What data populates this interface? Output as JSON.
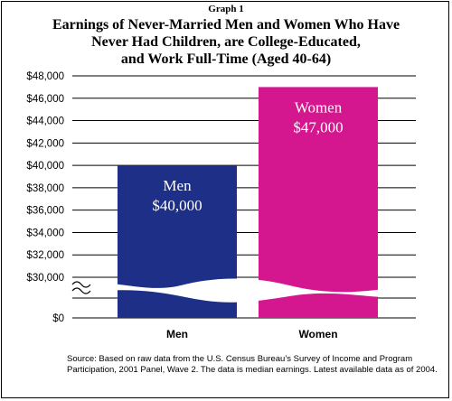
{
  "graph_label": "Graph 1",
  "title_lines": [
    "Earnings of Never-Married Men and Women Who Have",
    "Never Had Children, are College-Educated,",
    "and Work Full-Time (Aged 40-64)"
  ],
  "source_lines": [
    "Source: Based on raw data from the U.S. Census Bureau’s Survey of Income and Program",
    "Participation, 2001 Panel, Wave 2. The data is median earnings. Latest available data as of 2004."
  ],
  "colors": {
    "men": "#1d2f86",
    "women": "#d4178f",
    "grid": "#000000"
  },
  "chart_data": {
    "type": "bar",
    "categories": [
      "Men",
      "Women"
    ],
    "values": [
      40000,
      47000
    ],
    "bar_labels": [
      {
        "name": "Men",
        "value": "$40,000"
      },
      {
        "name": "Women",
        "value": "$47,000"
      }
    ],
    "ylim": [
      30000,
      48000
    ],
    "axis_break": true,
    "ticks": [
      "$30,000",
      "$32,000",
      "$34,000",
      "$36,000",
      "$38,000",
      "$40,000",
      "$42,000",
      "$44,000",
      "$46,000",
      "$48,000"
    ],
    "tick_values": [
      30000,
      32000,
      34000,
      36000,
      38000,
      40000,
      42000,
      44000,
      46000,
      48000
    ],
    "zero_tick": "$0",
    "grid": true,
    "legend": "none"
  }
}
